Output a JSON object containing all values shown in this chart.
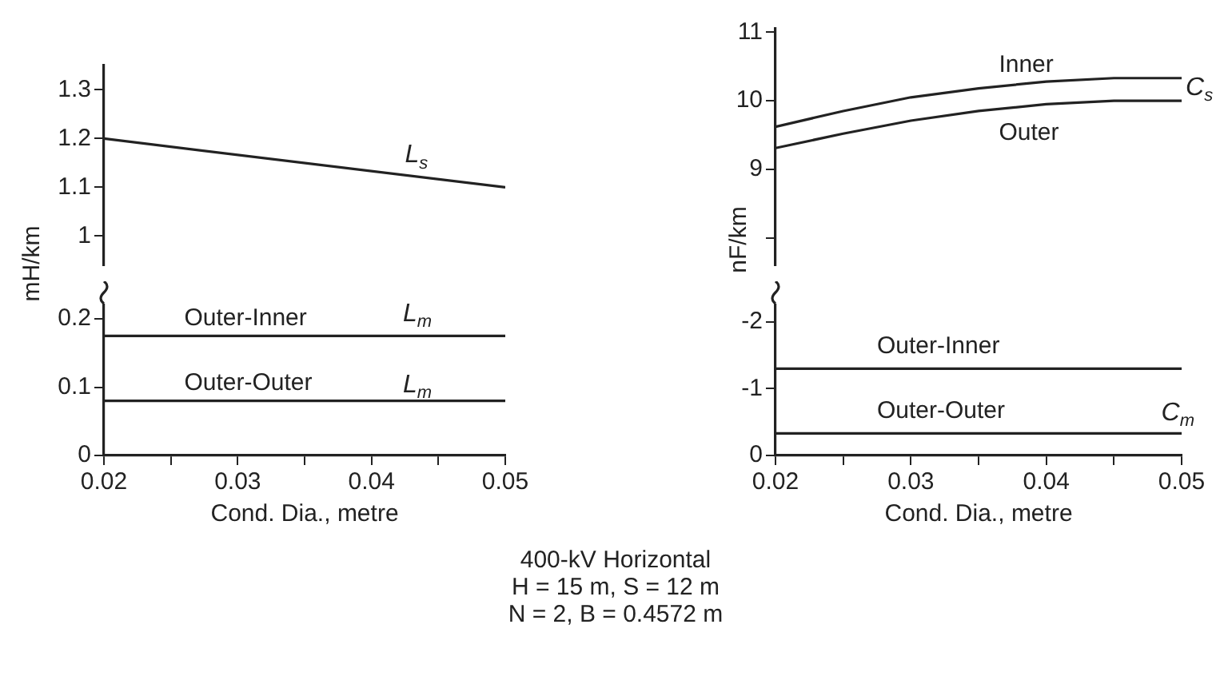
{
  "chart_data": [
    {
      "type": "line",
      "ylabel": "mH/km",
      "xlim": [
        0.02,
        0.05
      ],
      "ylim": [
        0.94,
        1.35
      ],
      "yticks": [
        1.0,
        1.1,
        1.2,
        1.3
      ],
      "tick_labels": "y",
      "legend": false,
      "series": [
        {
          "color": "#222222",
          "x": [
            0.02,
            0.05
          ],
          "values": [
            1.2,
            1.1
          ]
        }
      ],
      "annotations": [
        "L$_{s}$"
      ]
    },
    {
      "type": "line",
      "xlabel": "Cond. Dia., metre",
      "xlim": [
        0.02,
        0.05
      ],
      "xticks": [
        0.02,
        {
          "value": 0.025,
          "label": null
        },
        0.03,
        {
          "value": 0.035,
          "label": null
        },
        0.04,
        {
          "value": 0.045,
          "label": null
        },
        0.05
      ],
      "ylim": [
        0,
        0.22
      ],
      "yticks": [
        0,
        0.1,
        0.2
      ],
      "legend": false,
      "series": [
        {
          "name": "Outer-Inner",
          "color": "#222222",
          "x": [
            0.02,
            0.05
          ],
          "values": [
            0.175,
            0.175
          ]
        },
        {
          "name": "Outer-Outer",
          "color": "#222222",
          "x": [
            0.02,
            0.05
          ],
          "values": [
            0.08,
            0.08
          ]
        }
      ],
      "annotations": [
        "L$_{m}$",
        "L$_{m}$"
      ]
    },
    {
      "type": "line",
      "ylabel": "nF/km",
      "xlim": [
        0.02,
        0.05
      ],
      "ylim": [
        7.6,
        11.05
      ],
      "yticks": [
        {
          "value": 8,
          "label": null
        },
        9,
        10,
        11
      ],
      "tick_labels": "y",
      "legend": false,
      "series": [
        {
          "name": "Inner",
          "color": "#222222",
          "x": [
            0.02,
            0.025,
            0.03,
            0.035,
            0.04,
            0.045,
            0.05
          ],
          "values": [
            9.62,
            9.85,
            10.05,
            10.18,
            10.28,
            10.33,
            10.33
          ]
        },
        {
          "name": "Outer",
          "color": "#222222",
          "x": [
            0.02,
            0.025,
            0.03,
            0.035,
            0.04,
            0.045,
            0.05
          ],
          "values": [
            9.31,
            9.52,
            9.71,
            9.85,
            9.95,
            10.0,
            10.0
          ]
        }
      ],
      "annotations": [
        "C$_{s}$"
      ]
    },
    {
      "type": "line",
      "xlabel": "Cond. Dia., metre",
      "xlim": [
        0.02,
        0.05
      ],
      "xticks": [
        0.02,
        {
          "value": 0.025,
          "label": null
        },
        0.03,
        {
          "value": 0.035,
          "label": null
        },
        0.04,
        {
          "value": 0.045,
          "label": null
        },
        0.05
      ],
      "ylim": [
        0,
        -2.25
      ],
      "yticks": [
        0,
        -1,
        -2
      ],
      "legend": false,
      "series": [
        {
          "name": "Outer-Inner",
          "color": "#222222",
          "x": [
            0.02,
            0.05
          ],
          "values": [
            -1.3,
            -1.3
          ]
        },
        {
          "name": "Outer-Outer",
          "color": "#222222",
          "x": [
            0.02,
            0.05
          ],
          "values": [
            -0.33,
            -0.33
          ]
        }
      ],
      "annotations": [
        "C$_{m}$"
      ]
    },
    {
      "type": "other",
      "annotations": [
        "400-kV Horizontal",
        "H = 15 m, S = 12 m",
        "N = 2, B = 0.4572 m"
      ]
    }
  ]
}
